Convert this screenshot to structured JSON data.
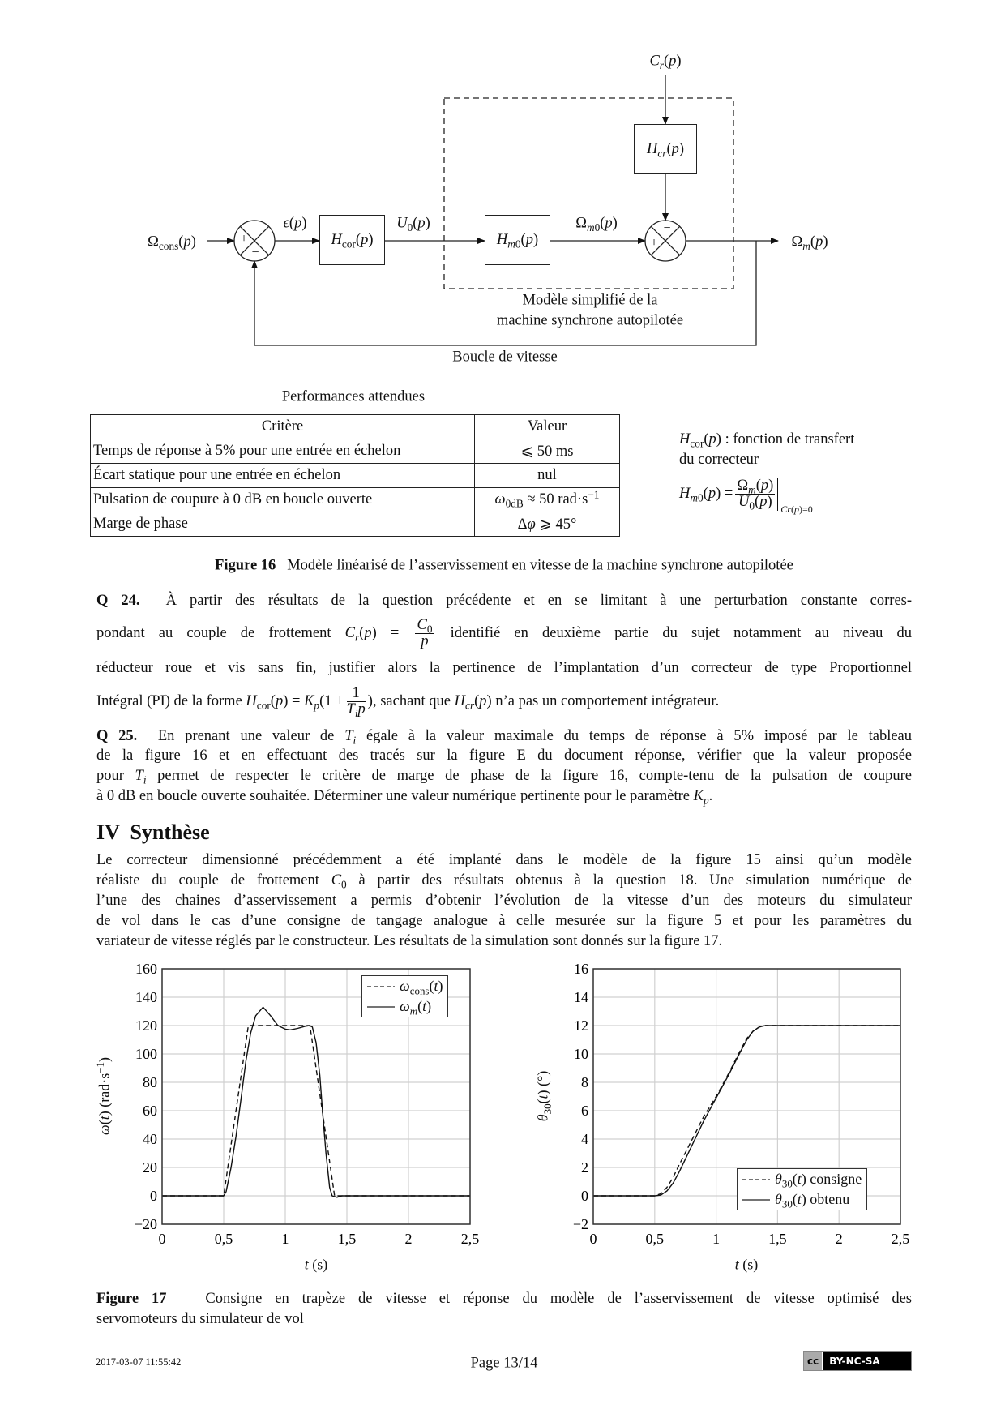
{
  "diagram": {
    "input": "Ω_{cons}(*p*)",
    "error": "*ϵ*(*p*)",
    "corrector": "*H*_{cor}(*p*)",
    "command": "*U*_{0}(*p*)",
    "motor": "*H*_{*m*0}(*p*)",
    "motor_out": "Ω_{*m*0}(*p*)",
    "disturbance": "*C*_{*r*}(*p*)",
    "disturbance_block": "*H*_{*cr*}(*p*)",
    "output": "Ω_{*m*}(*p*)",
    "plus": "+",
    "minus": "−",
    "model_label_1": "Modèle simplifié de la",
    "model_label_2": "machine synchrone autopilotée",
    "loop_label": "Boucle de vitesse"
  },
  "table": {
    "title": "Performances attendues",
    "headers": [
      "Critère",
      "Valeur"
    ],
    "rows": [
      [
        "Temps de réponse à 5% pour une entrée en échelon",
        "⩽ 50 ms"
      ],
      [
        "Écart statique pour une entrée en échelon",
        "nul"
      ],
      [
        "Pulsation de coupure à 0 dB en boucle ouverte",
        "*ω*_{0dB} ≈ 50 rad·s^{−1}"
      ],
      [
        "Marge de phase",
        "Δ*φ* ⩾ 45°"
      ]
    ]
  },
  "side_notes": {
    "hcor_line1": "*H*_{cor}(*p*) : fonction de transfert",
    "hcor_line2": "du correcteur",
    "hm0_lhs": "*H*_{*m*0}(*p*) =",
    "hm0_num": "Ω_{*m*}(*p*)",
    "hm0_den": "*U*_{0}(*p*)",
    "hm0_cond": "*Cr*(*p*)=0"
  },
  "figure16": {
    "label": "Figure 16",
    "text": "Modèle linéarisé de l’asservissement en vitesse de la machine synchrone autopilotée"
  },
  "q24": {
    "label": "Q 24.",
    "line1": "À partir des résultats de la question précédente et en se limitant à une perturbation constante corres-",
    "line2a": "pondant au couple de frottement *C*_{*r*}(*p*) =",
    "line2_num": "*C*_{0}",
    "line2_den": "*p*",
    "line2b": "identifié en deuxième partie du sujet notamment au niveau du",
    "line3": "réducteur roue et vis sans fin, justifier alors la pertinence de l’implantation d’un correcteur de type Proportionnel",
    "line4a": "Intégral (PI) de la forme *H*_{cor}(*p*) = *K*_{*p*}(1 +",
    "line4_num": "1",
    "line4_den": "*T*_{*i*}*p*",
    "line4b": "), sachant que *H*_{*cr*}(*p*) n’a pas un comportement intégrateur."
  },
  "q25": {
    "label": "Q 25.",
    "lines": [
      "En prenant une valeur de *T*_{*i*} égale à la valeur maximale du temps de réponse à 5% imposé par le tableau",
      "de la figure 16 et en effectuant des tracés sur la figure E du document réponse, vérifier que la valeur proposée",
      "pour *T*_{*i*} permet de respecter le critère de marge de phase de la figure 16, compte-tenu de la pulsation de coupure",
      "à 0 dB en boucle ouverte souhaitée. Déterminer une valeur numérique pertinente pour le paramètre *K*_{*p*}."
    ]
  },
  "section": {
    "title": "IV  Synthèse",
    "lines": [
      "Le correcteur dimensionné précédemment a été implanté dans le modèle de la figure 15 ainsi qu’un modèle",
      "réaliste du couple de frottement *C*_{0} à partir des résultats obtenus à la question 18. Une simulation numérique de",
      "l’une des chaines d’asservissement a permis d’obtenir l’évolution de la vitesse d’un des moteurs du simulateur",
      "de vol dans le cas d’une consigne de tangage analogue à celle mesurée sur la figure 5 et pour les paramètres du",
      "variateur de vitesse réglés par le constructeur. Les résultats de la simulation sont donnés sur la figure 17."
    ]
  },
  "figure17": {
    "label": "Figure 17",
    "line1": "Consigne en trapèze de vitesse et réponse du modèle de l’asservissement de vitesse optimisé des",
    "line2": "servomoteurs du simulateur de vol"
  },
  "chart_data": [
    {
      "type": "line",
      "xlabel": "*t* (s)",
      "ylabel": "*ω*(*t*) (rad·s^{−1})",
      "xlim": [
        0,
        2.5
      ],
      "ylim": [
        -20,
        160
      ],
      "xticks": [
        0,
        0.5,
        1,
        1.5,
        2,
        2.5
      ],
      "xtick_labels": [
        "0",
        "0,5",
        "1",
        "1,5",
        "2",
        "2,5"
      ],
      "yticks": [
        -20,
        0,
        20,
        40,
        60,
        80,
        100,
        120,
        140,
        160
      ],
      "ytick_labels": [
        "−20",
        "0",
        "20",
        "40",
        "60",
        "80",
        "100",
        "120",
        "140",
        "160"
      ],
      "grid": true,
      "legend_position": "top-right",
      "series": [
        {
          "name": "*ω*_{cons}(*t*)",
          "style": "dashed",
          "x": [
            0,
            0.5,
            0.7,
            1.2,
            1.4,
            2.5
          ],
          "y": [
            0,
            0,
            120,
            120,
            0,
            0
          ]
        },
        {
          "name": "*ω*_{*m*}(*t*)",
          "style": "solid",
          "x": [
            0,
            0.5,
            0.52,
            0.56,
            0.6,
            0.64,
            0.68,
            0.72,
            0.76,
            0.82,
            0.88,
            0.94,
            1.0,
            1.04,
            1.1,
            1.16,
            1.2,
            1.22,
            1.25,
            1.28,
            1.3,
            1.33,
            1.36,
            1.38,
            1.42,
            1.46,
            2.5
          ],
          "y": [
            0,
            0,
            3,
            20,
            42,
            68,
            95,
            115,
            127,
            133,
            127,
            120,
            117.5,
            117,
            118,
            119.5,
            120,
            119,
            108,
            85,
            62,
            30,
            6,
            0,
            -1,
            0,
            0
          ]
        }
      ]
    },
    {
      "type": "line",
      "xlabel": "*t* (s)",
      "ylabel": "*θ*_{30}(*t*) (°)",
      "xlim": [
        0,
        2.5
      ],
      "ylim": [
        -2,
        16
      ],
      "xticks": [
        0,
        0.5,
        1,
        1.5,
        2,
        2.5
      ],
      "xtick_labels": [
        "0",
        "0,5",
        "1",
        "1,5",
        "2",
        "2,5"
      ],
      "yticks": [
        -2,
        0,
        2,
        4,
        6,
        8,
        10,
        12,
        14,
        16
      ],
      "ytick_labels": [
        "−2",
        "0",
        "2",
        "4",
        "6",
        "8",
        "10",
        "12",
        "14",
        "16"
      ],
      "grid": true,
      "legend_position": "bottom-right",
      "series": [
        {
          "name": "*θ*_{30}(*t*) consigne",
          "style": "dashed",
          "x": [
            0,
            0.5,
            0.55,
            0.6,
            0.65,
            0.7,
            0.8,
            0.9,
            1.0,
            1.1,
            1.2,
            1.25,
            1.3,
            1.35,
            1.4,
            2.5
          ],
          "y": [
            0,
            0,
            0.15,
            0.6,
            1.3,
            2.2,
            3.9,
            5.6,
            7.0,
            8.6,
            10.3,
            11.1,
            11.6,
            11.9,
            12,
            12
          ]
        },
        {
          "name": "*θ*_{30}(*t*) obtenu",
          "style": "solid",
          "x": [
            0,
            0.5,
            0.55,
            0.6,
            0.65,
            0.7,
            0.8,
            0.9,
            1.0,
            1.1,
            1.2,
            1.25,
            1.3,
            1.35,
            1.4,
            2.5
          ],
          "y": [
            0,
            0,
            0.05,
            0.35,
            0.9,
            1.7,
            3.5,
            5.3,
            6.9,
            8.5,
            10.2,
            11.0,
            11.6,
            11.9,
            12,
            12
          ]
        }
      ]
    }
  ],
  "footer": {
    "timestamp": "2017-03-07 11:55:42",
    "page": "Page 13/14",
    "license_cc": "cc",
    "license": "BY-NC-SA"
  }
}
